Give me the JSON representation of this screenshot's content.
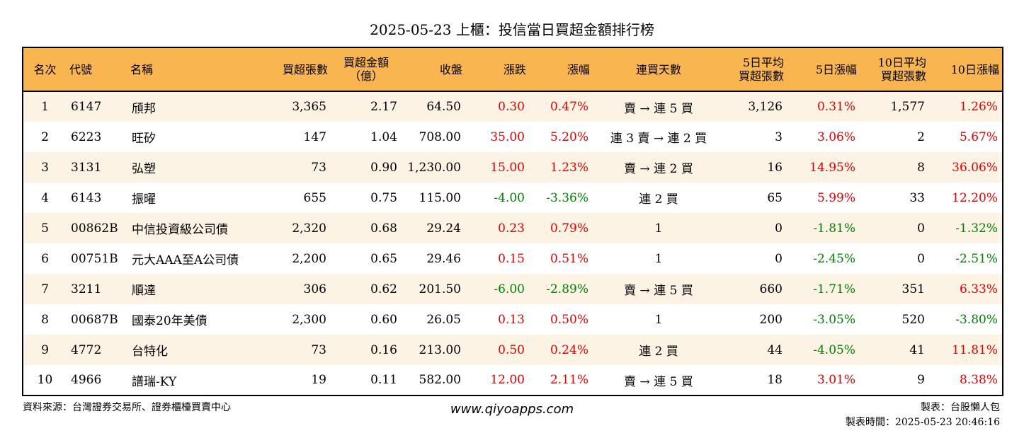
{
  "title": "2025-05-23 上櫃：投信當日買超金額排行榜",
  "headers": {
    "rank": "名次",
    "code": "代號",
    "name": "名稱",
    "net_buy_lots": "買超張數",
    "net_buy_amount_line1": "買超金額",
    "net_buy_amount_line2": "（億）",
    "close": "收盤",
    "change": "漲跌",
    "change_pct": "漲幅",
    "streak": "連買天數",
    "avg5_line1": "5日平均",
    "avg5_line2": "買超張數",
    "chg5": "5日漲幅",
    "avg10_line1": "10日平均",
    "avg10_line2": "買超張數",
    "chg10": "10日漲幅"
  },
  "rows": [
    {
      "rank": "1",
      "code": "6147",
      "name": "頎邦",
      "net_buy_lots": "3,365",
      "amount": "2.17",
      "close": "64.50",
      "change": "0.30",
      "change_pct": "0.47%",
      "streak": "賣 → 連 5 買",
      "avg5": "3,126",
      "chg5": "0.31%",
      "avg10": "1,577",
      "chg10": "1.26%"
    },
    {
      "rank": "2",
      "code": "6223",
      "name": "旺矽",
      "net_buy_lots": "147",
      "amount": "1.04",
      "close": "708.00",
      "change": "35.00",
      "change_pct": "5.20%",
      "streak": "連 3 賣 → 連 2 買",
      "avg5": "3",
      "chg5": "3.06%",
      "avg10": "2",
      "chg10": "5.67%"
    },
    {
      "rank": "3",
      "code": "3131",
      "name": "弘塑",
      "net_buy_lots": "73",
      "amount": "0.90",
      "close": "1,230.00",
      "change": "15.00",
      "change_pct": "1.23%",
      "streak": "賣 → 連 2 買",
      "avg5": "16",
      "chg5": "14.95%",
      "avg10": "8",
      "chg10": "36.06%"
    },
    {
      "rank": "4",
      "code": "6143",
      "name": "振曜",
      "net_buy_lots": "655",
      "amount": "0.75",
      "close": "115.00",
      "change": "-4.00",
      "change_pct": "-3.36%",
      "streak": "連 2 買",
      "avg5": "65",
      "chg5": "5.99%",
      "avg10": "33",
      "chg10": "12.20%"
    },
    {
      "rank": "5",
      "code": "00862B",
      "name": "中信投資級公司債",
      "net_buy_lots": "2,320",
      "amount": "0.68",
      "close": "29.24",
      "change": "0.23",
      "change_pct": "0.79%",
      "streak": "1",
      "avg5": "0",
      "chg5": "-1.81%",
      "avg10": "0",
      "chg10": "-1.32%"
    },
    {
      "rank": "6",
      "code": "00751B",
      "name": "元大AAA至A公司債",
      "net_buy_lots": "2,200",
      "amount": "0.65",
      "close": "29.46",
      "change": "0.15",
      "change_pct": "0.51%",
      "streak": "1",
      "avg5": "0",
      "chg5": "-2.45%",
      "avg10": "0",
      "chg10": "-2.51%"
    },
    {
      "rank": "7",
      "code": "3211",
      "name": "順達",
      "net_buy_lots": "306",
      "amount": "0.62",
      "close": "201.50",
      "change": "-6.00",
      "change_pct": "-2.89%",
      "streak": "賣 → 連 5 買",
      "avg5": "660",
      "chg5": "-1.71%",
      "avg10": "351",
      "chg10": "6.33%"
    },
    {
      "rank": "8",
      "code": "00687B",
      "name": "國泰20年美債",
      "net_buy_lots": "2,300",
      "amount": "0.60",
      "close": "26.05",
      "change": "0.13",
      "change_pct": "0.50%",
      "streak": "1",
      "avg5": "200",
      "chg5": "-3.05%",
      "avg10": "520",
      "chg10": "-3.80%"
    },
    {
      "rank": "9",
      "code": "4772",
      "name": "台特化",
      "net_buy_lots": "73",
      "amount": "0.16",
      "close": "213.00",
      "change": "0.50",
      "change_pct": "0.24%",
      "streak": "連 2 買",
      "avg5": "44",
      "chg5": "-4.05%",
      "avg10": "41",
      "chg10": "11.81%"
    },
    {
      "rank": "10",
      "code": "4966",
      "name": "譜瑞-KY",
      "net_buy_lots": "19",
      "amount": "0.11",
      "close": "582.00",
      "change": "12.00",
      "change_pct": "2.11%",
      "streak": "賣 → 連 5 買",
      "avg5": "18",
      "chg5": "3.01%",
      "avg10": "9",
      "chg10": "8.38%"
    }
  ],
  "footer": {
    "source": "資料來源：台灣證券交易所、證券櫃檯買賣中心",
    "website": "www.qiyoapps.com",
    "maker": "製表：台股懶人包",
    "timestamp": "製表時間：2025-05-23 20:46:16"
  },
  "colors": {
    "header_bg": "#f8b550",
    "stripe_bg": "#fdf3e5",
    "positive": "#e00000",
    "negative": "#008000"
  }
}
